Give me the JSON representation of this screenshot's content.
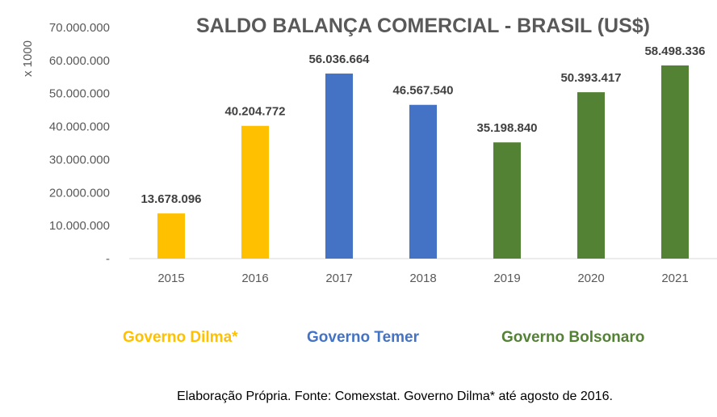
{
  "chart_data": {
    "type": "bar",
    "title": "SALDO BALANÇA COMERCIAL - BRASIL (US$)",
    "ylabel": "x 1000",
    "xlabel": "",
    "categories": [
      "2015",
      "2016",
      "2017",
      "2018",
      "2019",
      "2020",
      "2021"
    ],
    "values": [
      13678096,
      40204772,
      56036664,
      46567540,
      35198840,
      50393417,
      58498336
    ],
    "value_labels": [
      "13.678.096",
      "40.204.772",
      "56.036.664",
      "46.567.540",
      "35.198.840",
      "50.393.417",
      "58.498.336"
    ],
    "groups": [
      "Governo Dilma*",
      "Governo Dilma*",
      "Governo Temer",
      "Governo Temer",
      "Governo Bolsonaro",
      "Governo Bolsonaro",
      "Governo Bolsonaro"
    ],
    "ylim": [
      0,
      70000000
    ],
    "yticks": [
      0,
      10000000,
      20000000,
      30000000,
      40000000,
      50000000,
      60000000,
      70000000
    ],
    "ytick_labels": [
      "-",
      "10.000.000",
      "20.000.000",
      "30.000.000",
      "40.000.000",
      "50.000.000",
      "60.000.000",
      "70.000.000"
    ],
    "grid": false,
    "legend": [
      {
        "name": "Governo Dilma*",
        "color": "#FFC000"
      },
      {
        "name": "Governo Temer",
        "color": "#4472C4"
      },
      {
        "name": "Governo Bolsonaro",
        "color": "#548235"
      }
    ]
  },
  "footnote": "Elaboração Própria. Fonte: Comexstat. Governo Dilma* até agosto de 2016.",
  "colors": {
    "Governo Dilma*": "#FFC000",
    "Governo Temer": "#4472C4",
    "Governo Bolsonaro": "#548235",
    "axis_text": "#595959",
    "label_text": "#404040"
  }
}
